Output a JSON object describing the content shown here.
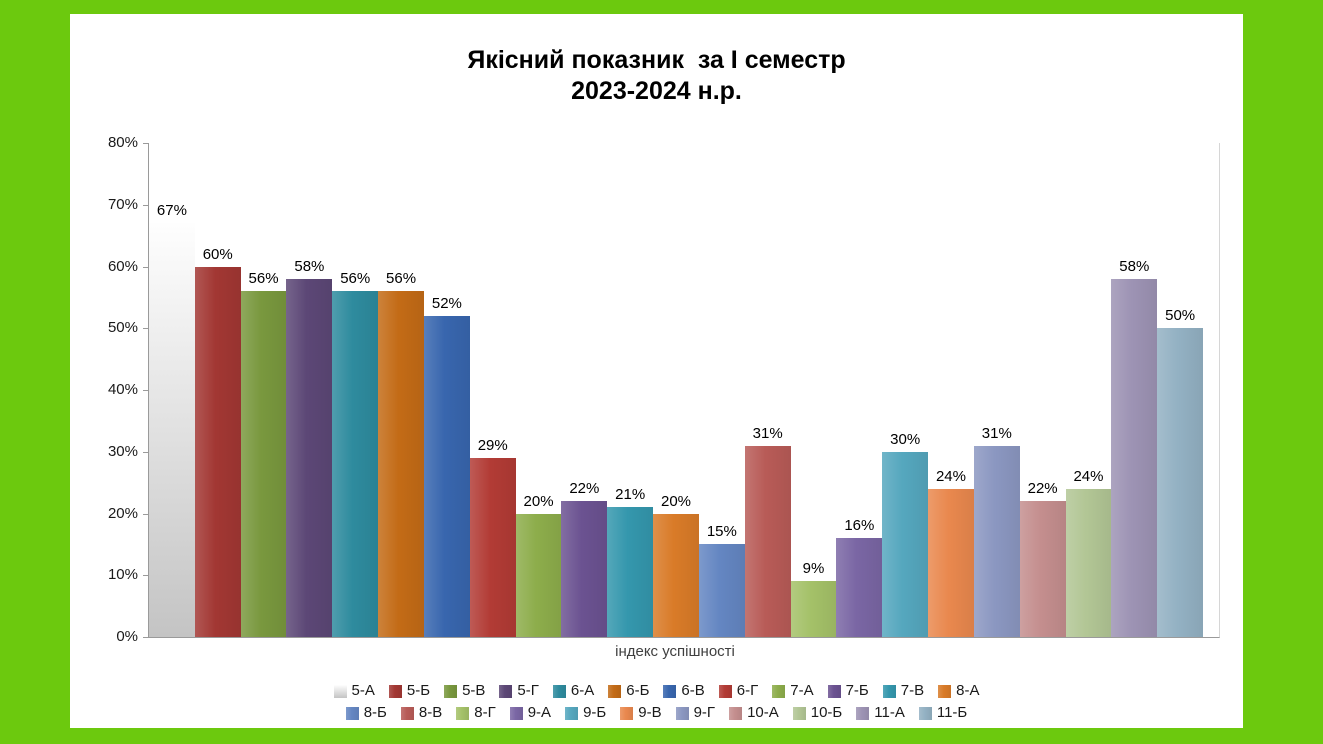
{
  "title": {
    "line1": "Якісний показник  за І семестр",
    "line2": "2023-2024 н.р."
  },
  "chart_data": {
    "type": "bar",
    "title": "Якісний показник за І семестр 2023-2024 н.р.",
    "xlabel": "індекс успішності",
    "ylabel": "",
    "ylim": [
      0,
      80
    ],
    "ytick_step": 10,
    "yticks": [
      "0%",
      "10%",
      "20%",
      "30%",
      "40%",
      "50%",
      "60%",
      "70%",
      "80%"
    ],
    "grid": false,
    "legend_position": "bottom",
    "value_label_suffix": "%",
    "categories": [
      "5-А",
      "5-Б",
      "5-В",
      "5-Г",
      "6-А",
      "6-Б",
      "6-В",
      "6-Г",
      "7-А",
      "7-Б",
      "7-В",
      "8-А",
      "8-Б",
      "8-В",
      "8-Г",
      "9-А",
      "9-Б",
      "9-В",
      "9-Г",
      "10-А",
      "10-Б",
      "11-А",
      "11-Б"
    ],
    "series": [
      {
        "name": "5-А",
        "value": 67,
        "color": "#FEFEFE",
        "color_bottom": "#C4C4C4"
      },
      {
        "name": "5-Б",
        "value": 60,
        "color": "#A23733"
      },
      {
        "name": "5-В",
        "value": 56,
        "color": "#79983E"
      },
      {
        "name": "5-Г",
        "value": 58,
        "color": "#5C4776"
      },
      {
        "name": "6-А",
        "value": 56,
        "color": "#2E8B9E"
      },
      {
        "name": "6-Б",
        "value": 56,
        "color": "#C36B16"
      },
      {
        "name": "6-В",
        "value": 52,
        "color": "#3866AE"
      },
      {
        "name": "6-Г",
        "value": 29,
        "color": "#B23B35"
      },
      {
        "name": "7-А",
        "value": 20,
        "color": "#8DAD4B"
      },
      {
        "name": "7-Б",
        "value": 22,
        "color": "#6B5291"
      },
      {
        "name": "7-В",
        "value": 21,
        "color": "#3497AD"
      },
      {
        "name": "8-А",
        "value": 20,
        "color": "#D97B28"
      },
      {
        "name": "8-Б",
        "value": 15,
        "color": "#6486C2"
      },
      {
        "name": "8-В",
        "value": 31,
        "color": "#B85B57"
      },
      {
        "name": "8-Г",
        "value": 9,
        "color": "#A4C168"
      },
      {
        "name": "9-А",
        "value": 16,
        "color": "#7A66A4"
      },
      {
        "name": "9-Б",
        "value": 30,
        "color": "#55A7BE"
      },
      {
        "name": "9-В",
        "value": 24,
        "color": "#E9884E"
      },
      {
        "name": "9-Г",
        "value": 31,
        "color": "#8B97C1"
      },
      {
        "name": "10-А",
        "value": 22,
        "color": "#C48E8E"
      },
      {
        "name": "10-Б",
        "value": 24,
        "color": "#B2C695"
      },
      {
        "name": "11-А",
        "value": 58,
        "color": "#9D93B4"
      },
      {
        "name": "11-Б",
        "value": 50,
        "color": "#93B1C3"
      }
    ],
    "legend_rows": [
      12,
      11
    ]
  },
  "colors": {
    "page_background": "#6CC90E",
    "panel_background": "#FFFFFF",
    "axis_line": "#9A9A9A",
    "plot_right_border": "#D6D6D6",
    "value_label_text": "#000000",
    "xlabel_text": "#3F3F3F"
  }
}
